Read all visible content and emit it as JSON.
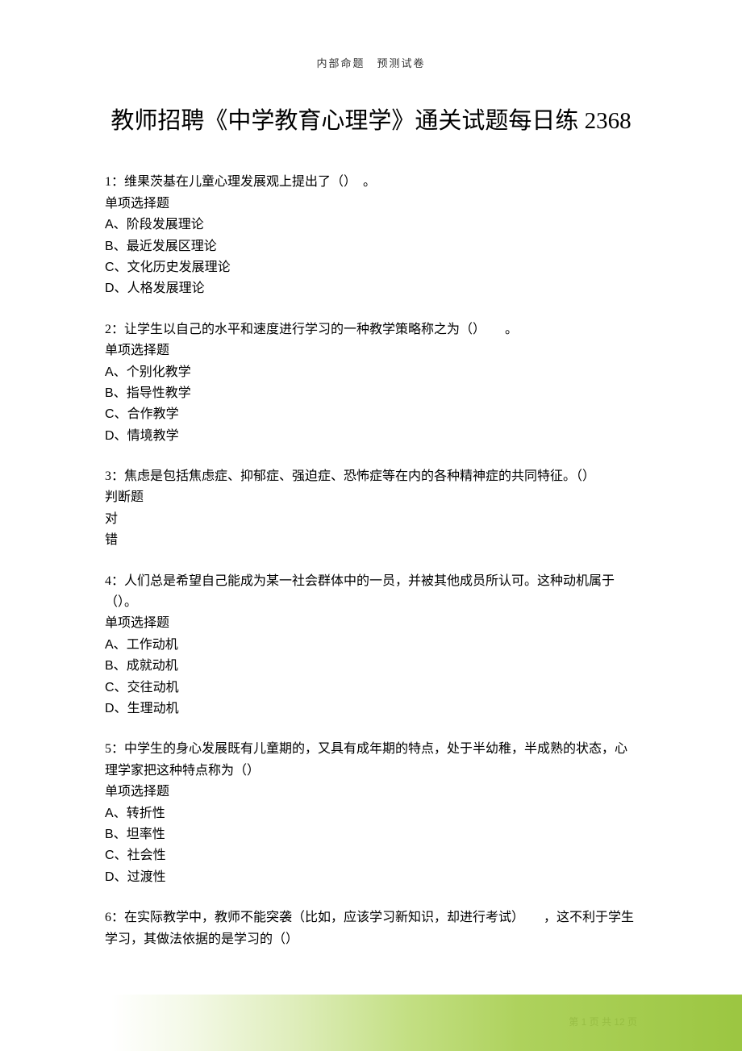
{
  "header": "内部命题　预测试卷",
  "title": "教师招聘《中学教育心理学》通关试题每日练 2368",
  "questions": [
    {
      "number": "1",
      "text": "维果茨基在儿童心理发展观上提出了（）　。",
      "type": "单项选择题",
      "options": [
        {
          "label": "A、",
          "text": "阶段发展理论"
        },
        {
          "label": "B、",
          "text": "最近发展区理论"
        },
        {
          "label": "C、",
          "text": "文化历史发展理论"
        },
        {
          "label": "D、",
          "text": "人格发展理论"
        }
      ]
    },
    {
      "number": "2",
      "text": "让学生以自己的水平和速度进行学习的一种教学策略称之为（）　　。",
      "type": "单项选择题",
      "options": [
        {
          "label": "A、",
          "text": "个别化教学"
        },
        {
          "label": "B、",
          "text": "指导性教学"
        },
        {
          "label": "C、",
          "text": "合作教学"
        },
        {
          "label": "D、",
          "text": "情境教学"
        }
      ]
    },
    {
      "number": "3",
      "text": "焦虑是包括焦虑症、抑郁症、强迫症、恐怖症等在内的各种精神症的共同特征。（）",
      "type": "判断题",
      "options": [
        {
          "label": "",
          "text": "对"
        },
        {
          "label": "",
          "text": "错"
        }
      ]
    },
    {
      "number": "4",
      "text": "人们总是希望自己能成为某一社会群体中的一员，并被其他成员所认可。这种动机属于（）。",
      "type": "单项选择题",
      "options": [
        {
          "label": "A、",
          "text": "工作动机"
        },
        {
          "label": "B、",
          "text": "成就动机"
        },
        {
          "label": "C、",
          "text": "交往动机"
        },
        {
          "label": "D、",
          "text": "生理动机"
        }
      ]
    },
    {
      "number": "5",
      "text": "中学生的身心发展既有儿童期的，又具有成年期的特点，处于半幼稚，半成熟的状态，心理学家把这种特点称为（）",
      "type": "单项选择题",
      "options": [
        {
          "label": "A、",
          "text": "转折性"
        },
        {
          "label": "B、",
          "text": "坦率性"
        },
        {
          "label": "C、",
          "text": "社会性"
        },
        {
          "label": "D、",
          "text": "过渡性"
        }
      ]
    },
    {
      "number": "6",
      "text": "在实际教学中，教师不能突袭（比如，应该学习新知识，却进行考试）　　，这不利于学生学习，其做法依据的是学习的（）",
      "type": "",
      "options": []
    }
  ],
  "footer": {
    "prefix": "第 ",
    "current": "1",
    "middle": " 页 共 ",
    "total": "12",
    "suffix": " 页"
  }
}
